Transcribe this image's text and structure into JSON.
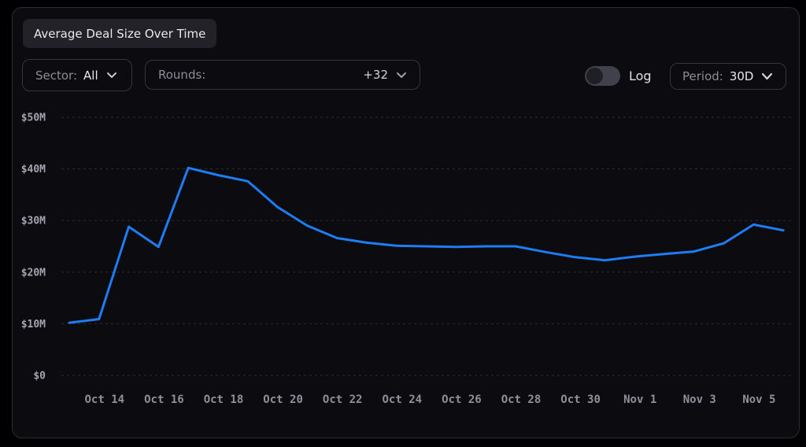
{
  "title": "Average Deal Size Over Time",
  "controls": {
    "sector": {
      "label": "Sector:",
      "value": "All"
    },
    "rounds": {
      "label": "Rounds:",
      "value": "+32"
    },
    "log_toggle": {
      "label": "Log",
      "state": "off"
    },
    "period": {
      "label": "Period:",
      "value": "30D"
    }
  },
  "colors": {
    "line": "#1e7df3",
    "panel_bg": "#0b0b10",
    "panel_border": "#2c2c34",
    "grid": "#2c2c33",
    "y_tick_text": "#a4a4b0",
    "x_tick_text": "#90909c",
    "chip_bg": "#222228",
    "text_bright": "#e9e9ec",
    "text_muted": "#8d8d98"
  },
  "chart_data": {
    "type": "line",
    "title": "Average Deal Size Over Time",
    "x": [
      "Oct 13",
      "Oct 14",
      "Oct 15",
      "Oct 16",
      "Oct 17",
      "Oct 18",
      "Oct 19",
      "Oct 20",
      "Oct 21",
      "Oct 22",
      "Oct 23",
      "Oct 24",
      "Oct 25",
      "Oct 26",
      "Oct 27",
      "Oct 28",
      "Oct 29",
      "Oct 30",
      "Oct 31",
      "Nov 1",
      "Nov 2",
      "Nov 3",
      "Nov 4",
      "Nov 5",
      "Nov 6"
    ],
    "values": [
      10.2,
      10.9,
      28.8,
      24.9,
      40.2,
      38.8,
      37.6,
      32.6,
      29.0,
      26.6,
      25.7,
      25.1,
      25.0,
      24.9,
      25.0,
      25.0,
      23.9,
      22.9,
      22.3,
      23.0,
      23.5,
      24.0,
      25.6,
      29.2,
      28.1
    ],
    "x_tick_labels": [
      "Oct 14",
      "Oct 16",
      "Oct 18",
      "Oct 20",
      "Oct 22",
      "Oct 24",
      "Oct 26",
      "Oct 28",
      "Oct 30",
      "Nov 1",
      "Nov 3",
      "Nov 5"
    ],
    "y_ticks": {
      "values": [
        0,
        10,
        20,
        30,
        40,
        50
      ],
      "labels": [
        "$0",
        "$10M",
        "$20M",
        "$30M",
        "$40M",
        "$50M"
      ]
    },
    "ylim": [
      0,
      50
    ],
    "unit": "USD millions",
    "grid": "horizontal dashed",
    "legend": "none",
    "xlabel": "",
    "ylabel": ""
  }
}
